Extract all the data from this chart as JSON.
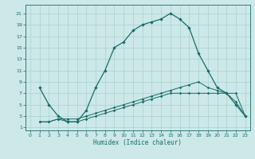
{
  "xlabel": "Humidex (Indice chaleur)",
  "bg_color": "#cce8e8",
  "line_color": "#1a6b6b",
  "grid_color": "#aad0d0",
  "xlim": [
    -0.5,
    23.5
  ],
  "ylim": [
    0.5,
    22.5
  ],
  "xticks": [
    0,
    1,
    2,
    3,
    4,
    5,
    6,
    7,
    8,
    9,
    10,
    11,
    12,
    13,
    14,
    15,
    16,
    17,
    18,
    19,
    20,
    21,
    22,
    23
  ],
  "yticks": [
    1,
    3,
    5,
    7,
    9,
    11,
    13,
    15,
    17,
    19,
    21
  ],
  "line1_x": [
    1,
    2,
    3,
    4,
    5,
    6,
    7,
    8,
    9,
    10,
    11,
    12,
    13,
    14,
    15,
    16,
    17,
    18,
    19,
    20,
    21,
    22,
    23
  ],
  "line1_y": [
    8,
    5,
    3,
    2,
    2,
    4,
    8,
    11,
    15,
    16,
    18,
    19,
    19.5,
    20,
    21,
    20,
    18.5,
    14,
    11,
    8,
    7,
    5,
    3
  ],
  "line2_x": [
    1,
    2,
    3,
    4,
    5,
    6,
    7,
    8,
    9,
    10,
    11,
    12,
    13,
    14,
    15,
    16,
    17,
    18,
    19,
    20,
    21,
    22,
    23
  ],
  "line2_y": [
    2.0,
    2.0,
    2.5,
    2.5,
    2.5,
    3.0,
    3.5,
    4.0,
    4.5,
    5.0,
    5.5,
    6.0,
    6.5,
    7.0,
    7.5,
    8.0,
    8.5,
    9.0,
    8.0,
    7.5,
    7.0,
    5.5,
    3.0
  ],
  "line3_x": [
    1,
    2,
    3,
    4,
    5,
    6,
    7,
    8,
    9,
    10,
    11,
    12,
    13,
    14,
    15,
    16,
    17,
    18,
    19,
    20,
    21,
    22,
    23
  ],
  "line3_y": [
    2.0,
    2.0,
    2.5,
    2.0,
    2.0,
    2.5,
    3.0,
    3.5,
    4.0,
    4.5,
    5.0,
    5.5,
    6.0,
    6.5,
    7.0,
    7.0,
    7.0,
    7.0,
    7.0,
    7.0,
    7.0,
    7.0,
    3.0
  ]
}
